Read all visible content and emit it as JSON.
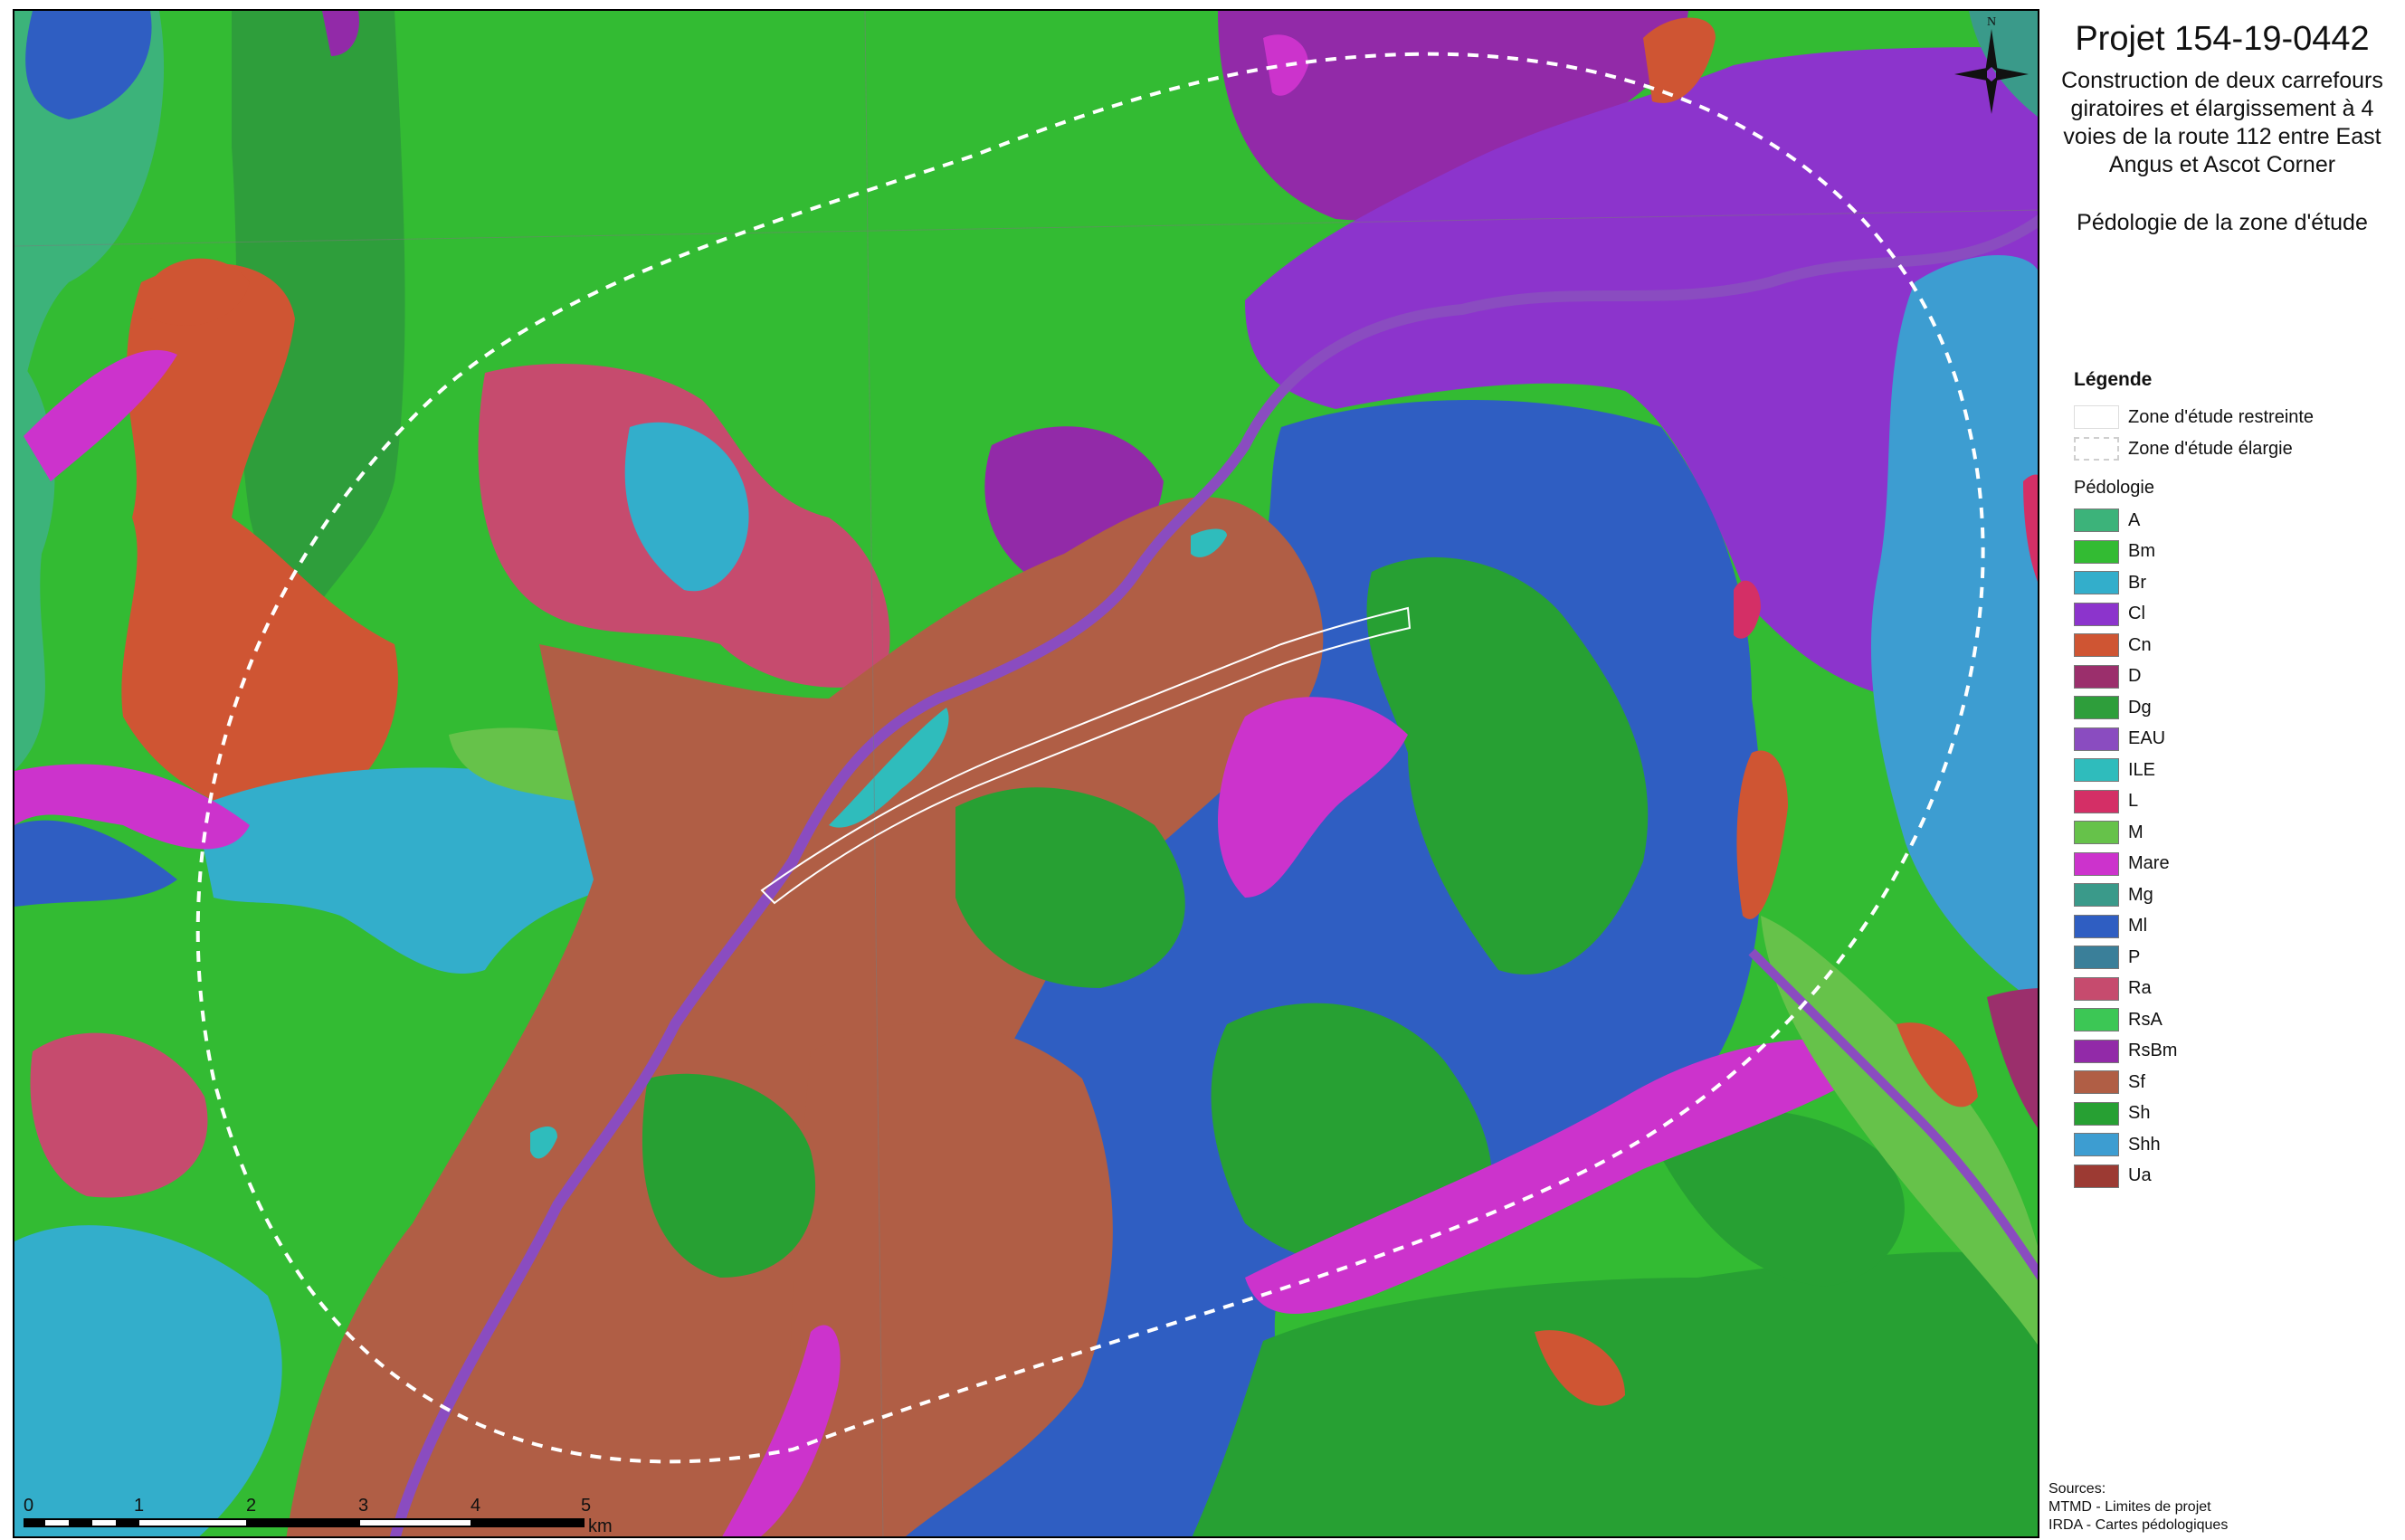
{
  "project": {
    "title": "Projet 154-19-0442",
    "description": "Construction de deux carrefours giratoires et élargissement à 4 voies de la route 112 entre East Angus et Ascot Corner",
    "theme": "Pédologie de la zone d'étude"
  },
  "legend": {
    "title": "Légende",
    "zones": [
      {
        "label": "Zone d'étude restreinte",
        "style": "solid"
      },
      {
        "label": "Zone d'étude élargie",
        "style": "dashed"
      }
    ],
    "pedologie_title": "Pédologie",
    "classes": [
      {
        "code": "A",
        "color": "#3cb37a"
      },
      {
        "code": "Bm",
        "color": "#33bb33"
      },
      {
        "code": "Br",
        "color": "#33aecb"
      },
      {
        "code": "Cl",
        "color": "#8c34cc"
      },
      {
        "code": "Cn",
        "color": "#cf5533"
      },
      {
        "code": "D",
        "color": "#9b2f6c"
      },
      {
        "code": "Dg",
        "color": "#2e9e3b"
      },
      {
        "code": "EAU",
        "color": "#8a4cc0"
      },
      {
        "code": "ILE",
        "color": "#2fbcbc"
      },
      {
        "code": "L",
        "color": "#d42f66"
      },
      {
        "code": "M",
        "color": "#66c24a"
      },
      {
        "code": "Mare",
        "color": "#cc33cc"
      },
      {
        "code": "Mg",
        "color": "#3a9a8a"
      },
      {
        "code": "Ml",
        "color": "#2f5ec2"
      },
      {
        "code": "P",
        "color": "#3a7f99"
      },
      {
        "code": "Ra",
        "color": "#c64b6e"
      },
      {
        "code": "RsA",
        "color": "#3cc755"
      },
      {
        "code": "RsBm",
        "color": "#922aa8"
      },
      {
        "code": "Sf",
        "color": "#b05e45"
      },
      {
        "code": "Sh",
        "color": "#27a033"
      },
      {
        "code": "Shh",
        "color": "#3d9dd1"
      },
      {
        "code": "Ua",
        "color": "#9c3a33"
      }
    ]
  },
  "north_label": "N",
  "scale_bar": {
    "ticks": [
      "0",
      "1",
      "2",
      "3",
      "4",
      "5"
    ],
    "unit": "km"
  },
  "sources": {
    "title": "Sources:",
    "lines": [
      "MTMD - Limites de projet",
      "IRDA - Cartes pédologiques"
    ]
  }
}
